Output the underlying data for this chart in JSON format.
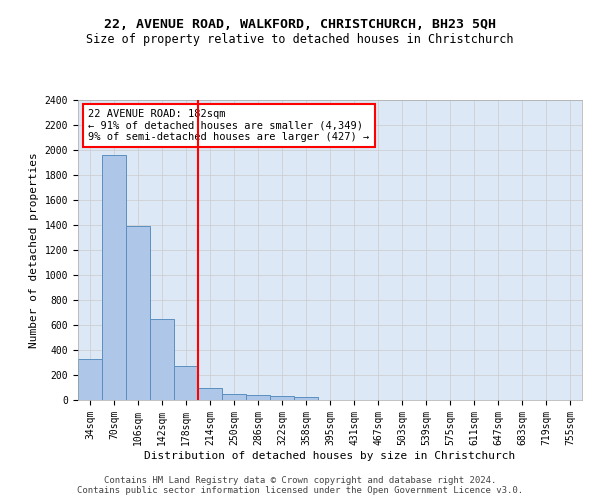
{
  "title1": "22, AVENUE ROAD, WALKFORD, CHRISTCHURCH, BH23 5QH",
  "title2": "Size of property relative to detached houses in Christchurch",
  "xlabel": "Distribution of detached houses by size in Christchurch",
  "ylabel": "Number of detached properties",
  "categories": [
    "34sqm",
    "70sqm",
    "106sqm",
    "142sqm",
    "178sqm",
    "214sqm",
    "250sqm",
    "286sqm",
    "322sqm",
    "358sqm",
    "395sqm",
    "431sqm",
    "467sqm",
    "503sqm",
    "539sqm",
    "575sqm",
    "611sqm",
    "647sqm",
    "683sqm",
    "719sqm",
    "755sqm"
  ],
  "values": [
    325,
    1960,
    1390,
    645,
    275,
    100,
    47,
    38,
    35,
    22,
    0,
    0,
    0,
    0,
    0,
    0,
    0,
    0,
    0,
    0,
    0
  ],
  "bar_color": "#aec6e8",
  "bar_edge_color": "#5a8fc0",
  "vline_color": "red",
  "annotation_line1": "22 AVENUE ROAD: 182sqm",
  "annotation_line2": "← 91% of detached houses are smaller (4,349)",
  "annotation_line3": "9% of semi-detached houses are larger (427) →",
  "annotation_box_color": "white",
  "annotation_box_edge_color": "red",
  "ylim": [
    0,
    2400
  ],
  "yticks": [
    0,
    200,
    400,
    600,
    800,
    1000,
    1200,
    1400,
    1600,
    1800,
    2000,
    2200,
    2400
  ],
  "grid_color": "#cccccc",
  "bg_color": "#dce8f5",
  "footer1": "Contains HM Land Registry data © Crown copyright and database right 2024.",
  "footer2": "Contains public sector information licensed under the Open Government Licence v3.0.",
  "title_fontsize": 9.5,
  "subtitle_fontsize": 8.5,
  "axis_label_fontsize": 8,
  "tick_fontsize": 7,
  "annotation_fontsize": 7.5,
  "footer_fontsize": 6.5
}
